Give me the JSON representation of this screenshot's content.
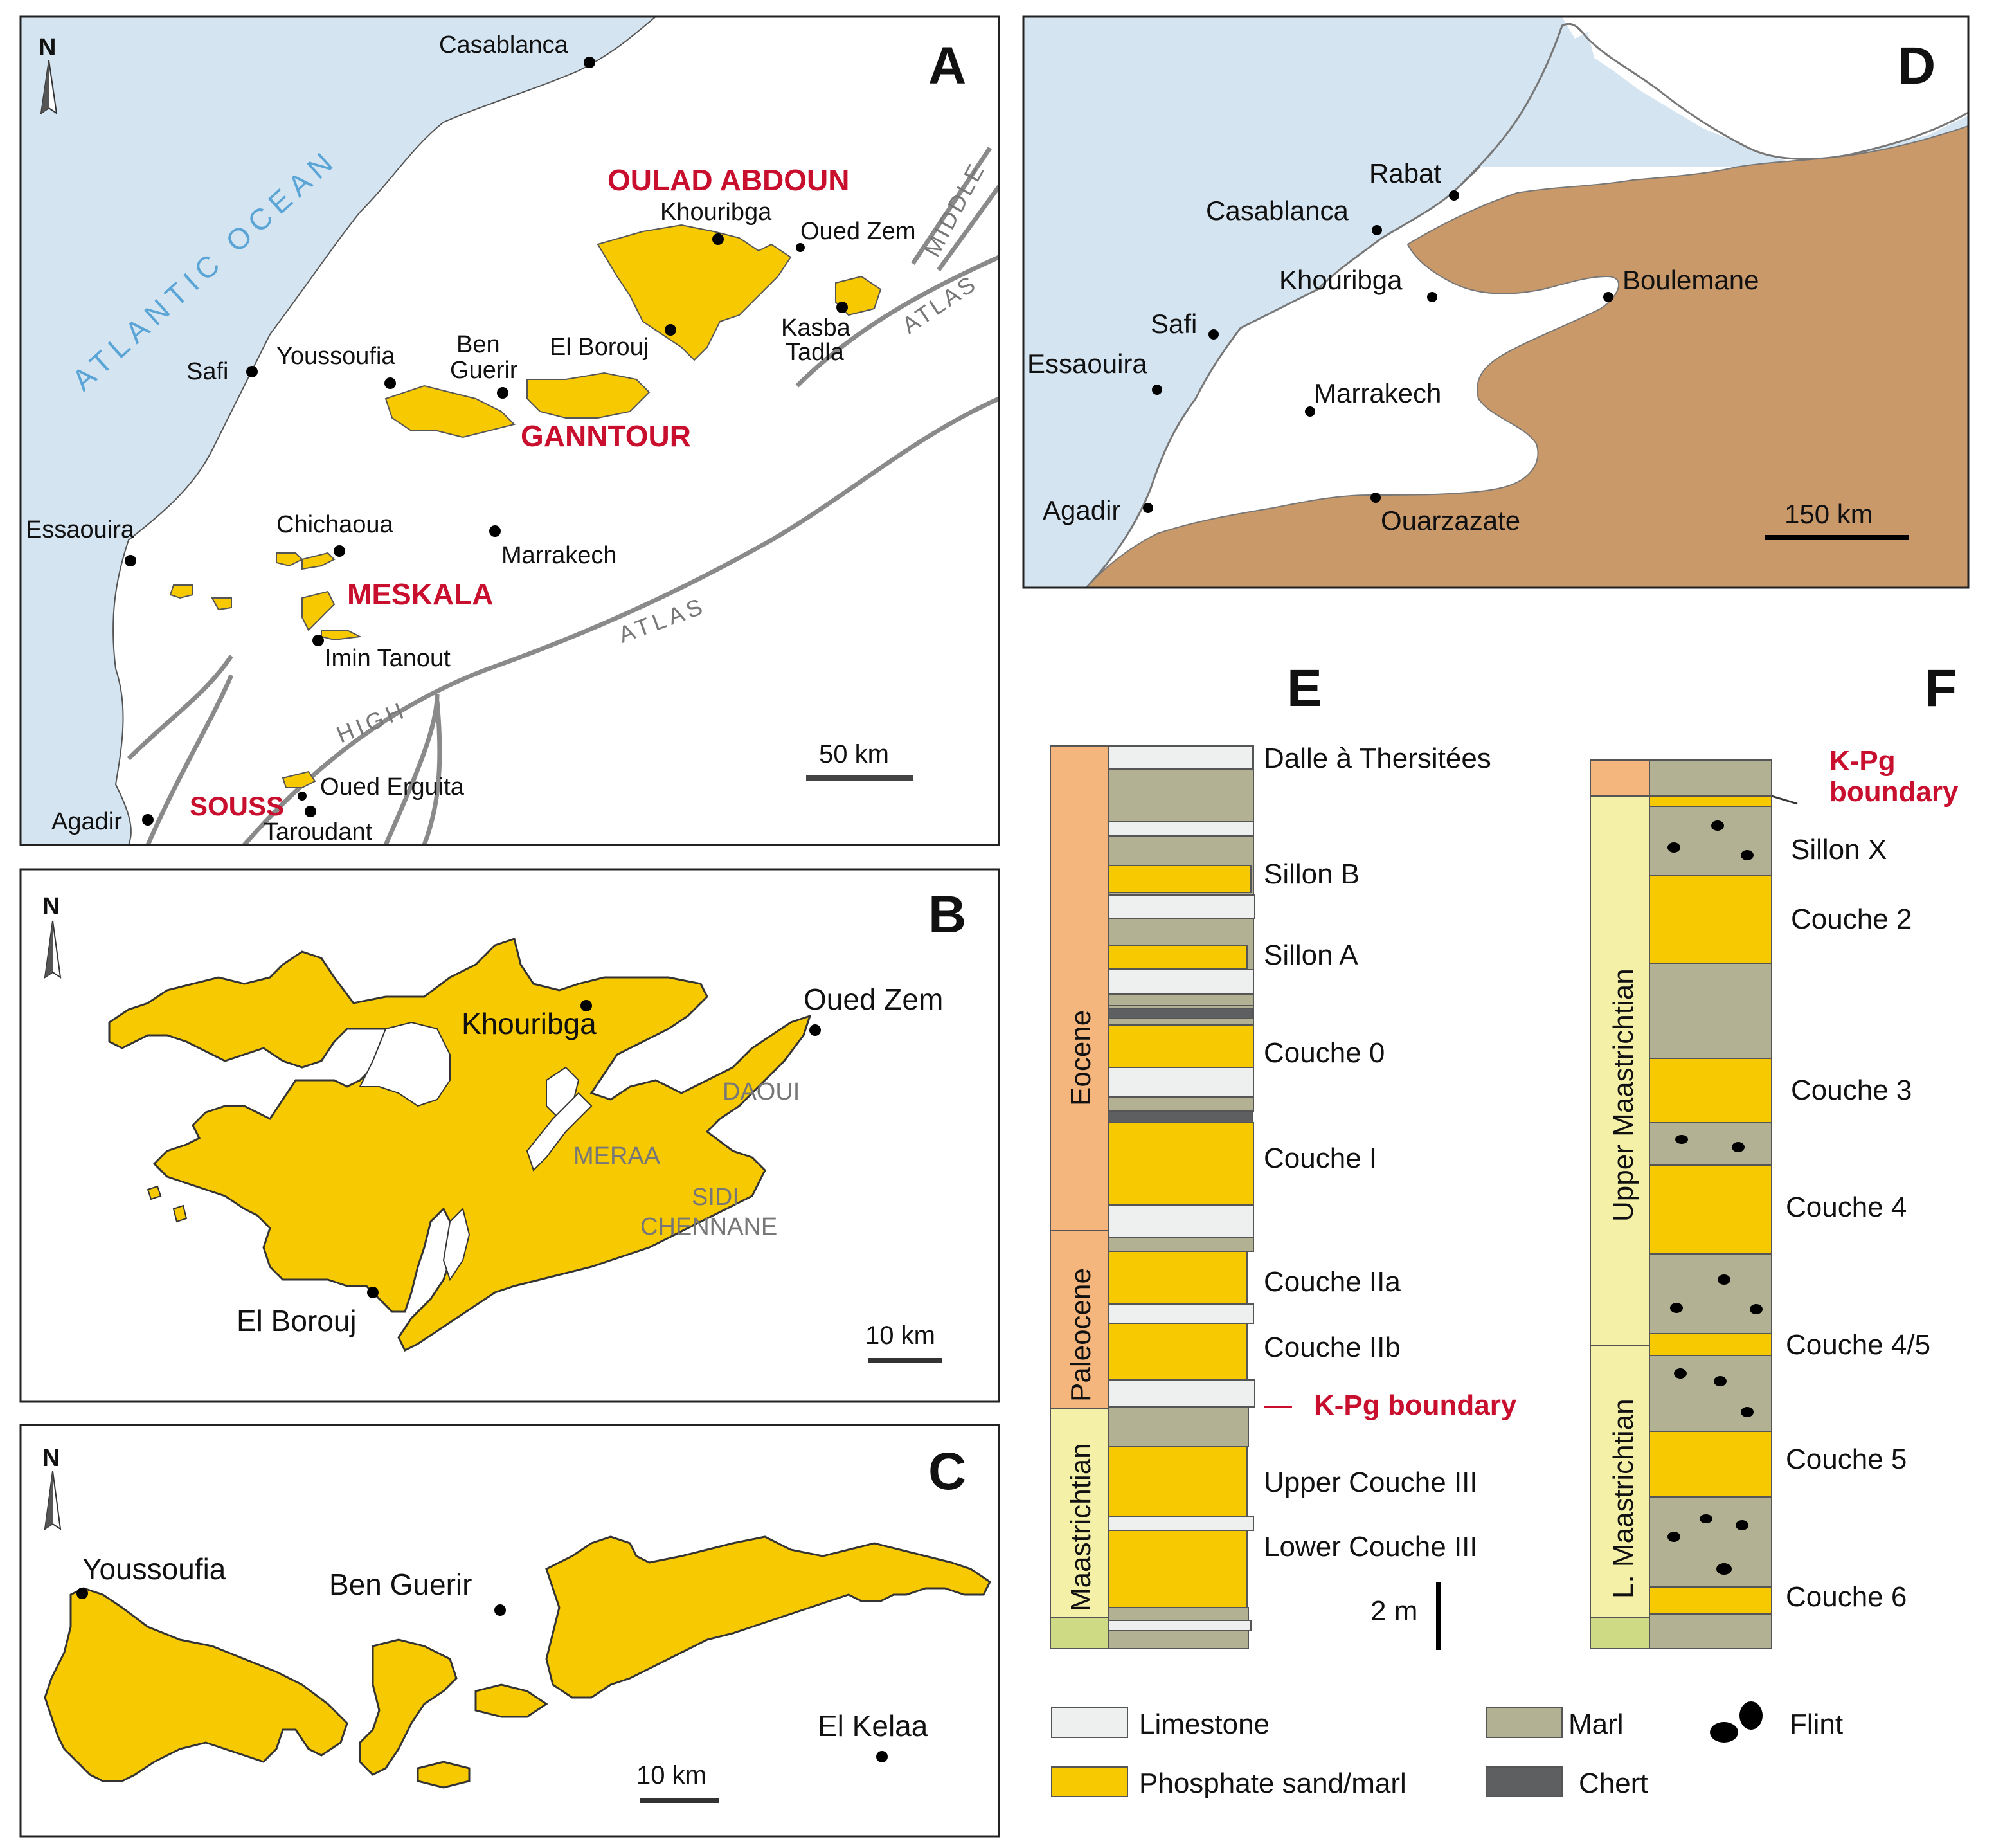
{
  "colors": {
    "ocean": "#d4e4f1",
    "phosphate": "#f7c900",
    "land_d": "#c9996a",
    "limestone": "#eef0f0",
    "marl": "#b3b193",
    "chert": "#5d5f61",
    "eocene": "#f5b67e",
    "paleocene": "#f5b67e",
    "maastrichtian": "#f5f0a8",
    "lower_unit": "#cfdb84",
    "kpg": "#c8102e"
  },
  "panel_a": {
    "letter": "A",
    "north": "N",
    "ocean_label": "ATLANTIC   OCEAN",
    "basins": [
      "OULAD ABDOUN",
      "GANNTOUR",
      "MESKALA",
      "SOUSS"
    ],
    "towns": [
      "Casablanca",
      "Khouribga",
      "Oued Zem",
      "Kasba",
      "Tadla",
      "El Borouj",
      "Ben",
      "Guerir",
      "Youssoufia",
      "Safi",
      "Essaouira",
      "Chichaoua",
      "Marrakech",
      "Imin Tanout",
      "Oued Erguita",
      "Taroudant",
      "Agadir"
    ],
    "ranges": [
      "MIDDLE",
      "ATLAS",
      "ATLAS",
      "HIGH"
    ],
    "scale": "50 km"
  },
  "panel_b": {
    "letter": "B",
    "north": "N",
    "towns": [
      "Khouribga",
      "Oued Zem",
      "El Borouj"
    ],
    "areas": [
      "DAOUI",
      "MERAA",
      "SIDI",
      "CHENNANE"
    ],
    "scale": "10 km"
  },
  "panel_c": {
    "letter": "C",
    "north": "N",
    "towns": [
      "Youssoufia",
      "Ben Guerir",
      "El Kelaa"
    ],
    "scale": "10 km"
  },
  "panel_d": {
    "letter": "D",
    "towns": [
      "Rabat",
      "Casablanca",
      "Khouribga",
      "Boulemane",
      "Safi",
      "Essaouira",
      "Marrakech",
      "Agadir",
      "Ouarzazate"
    ],
    "scale": "150 km"
  },
  "panel_e": {
    "letter": "E",
    "epochs": [
      "Eocene",
      "Paleocene",
      "Maastrichtian"
    ],
    "beds": [
      "Dalle à Thersitées",
      "Sillon B",
      "Sillon A",
      "Couche 0",
      "Couche I",
      "Couche IIa",
      "Couche IIb",
      "Upper Couche III",
      "Lower Couche III"
    ],
    "boundary": "K-Pg boundary",
    "scale": "2 m"
  },
  "panel_f": {
    "letter": "F",
    "epochs": [
      "Upper Maastrichtian",
      "L. Maastrichtian"
    ],
    "boundary": [
      "K-Pg",
      "boundary"
    ],
    "beds": [
      "Sillon X",
      "Couche 2",
      "Couche 3",
      "Couche 4",
      "Couche 4/5",
      "Couche 5",
      "Couche 6"
    ]
  },
  "legend": [
    "Limestone",
    "Phosphate sand/marl",
    "Marl",
    "Chert",
    "Flint"
  ]
}
